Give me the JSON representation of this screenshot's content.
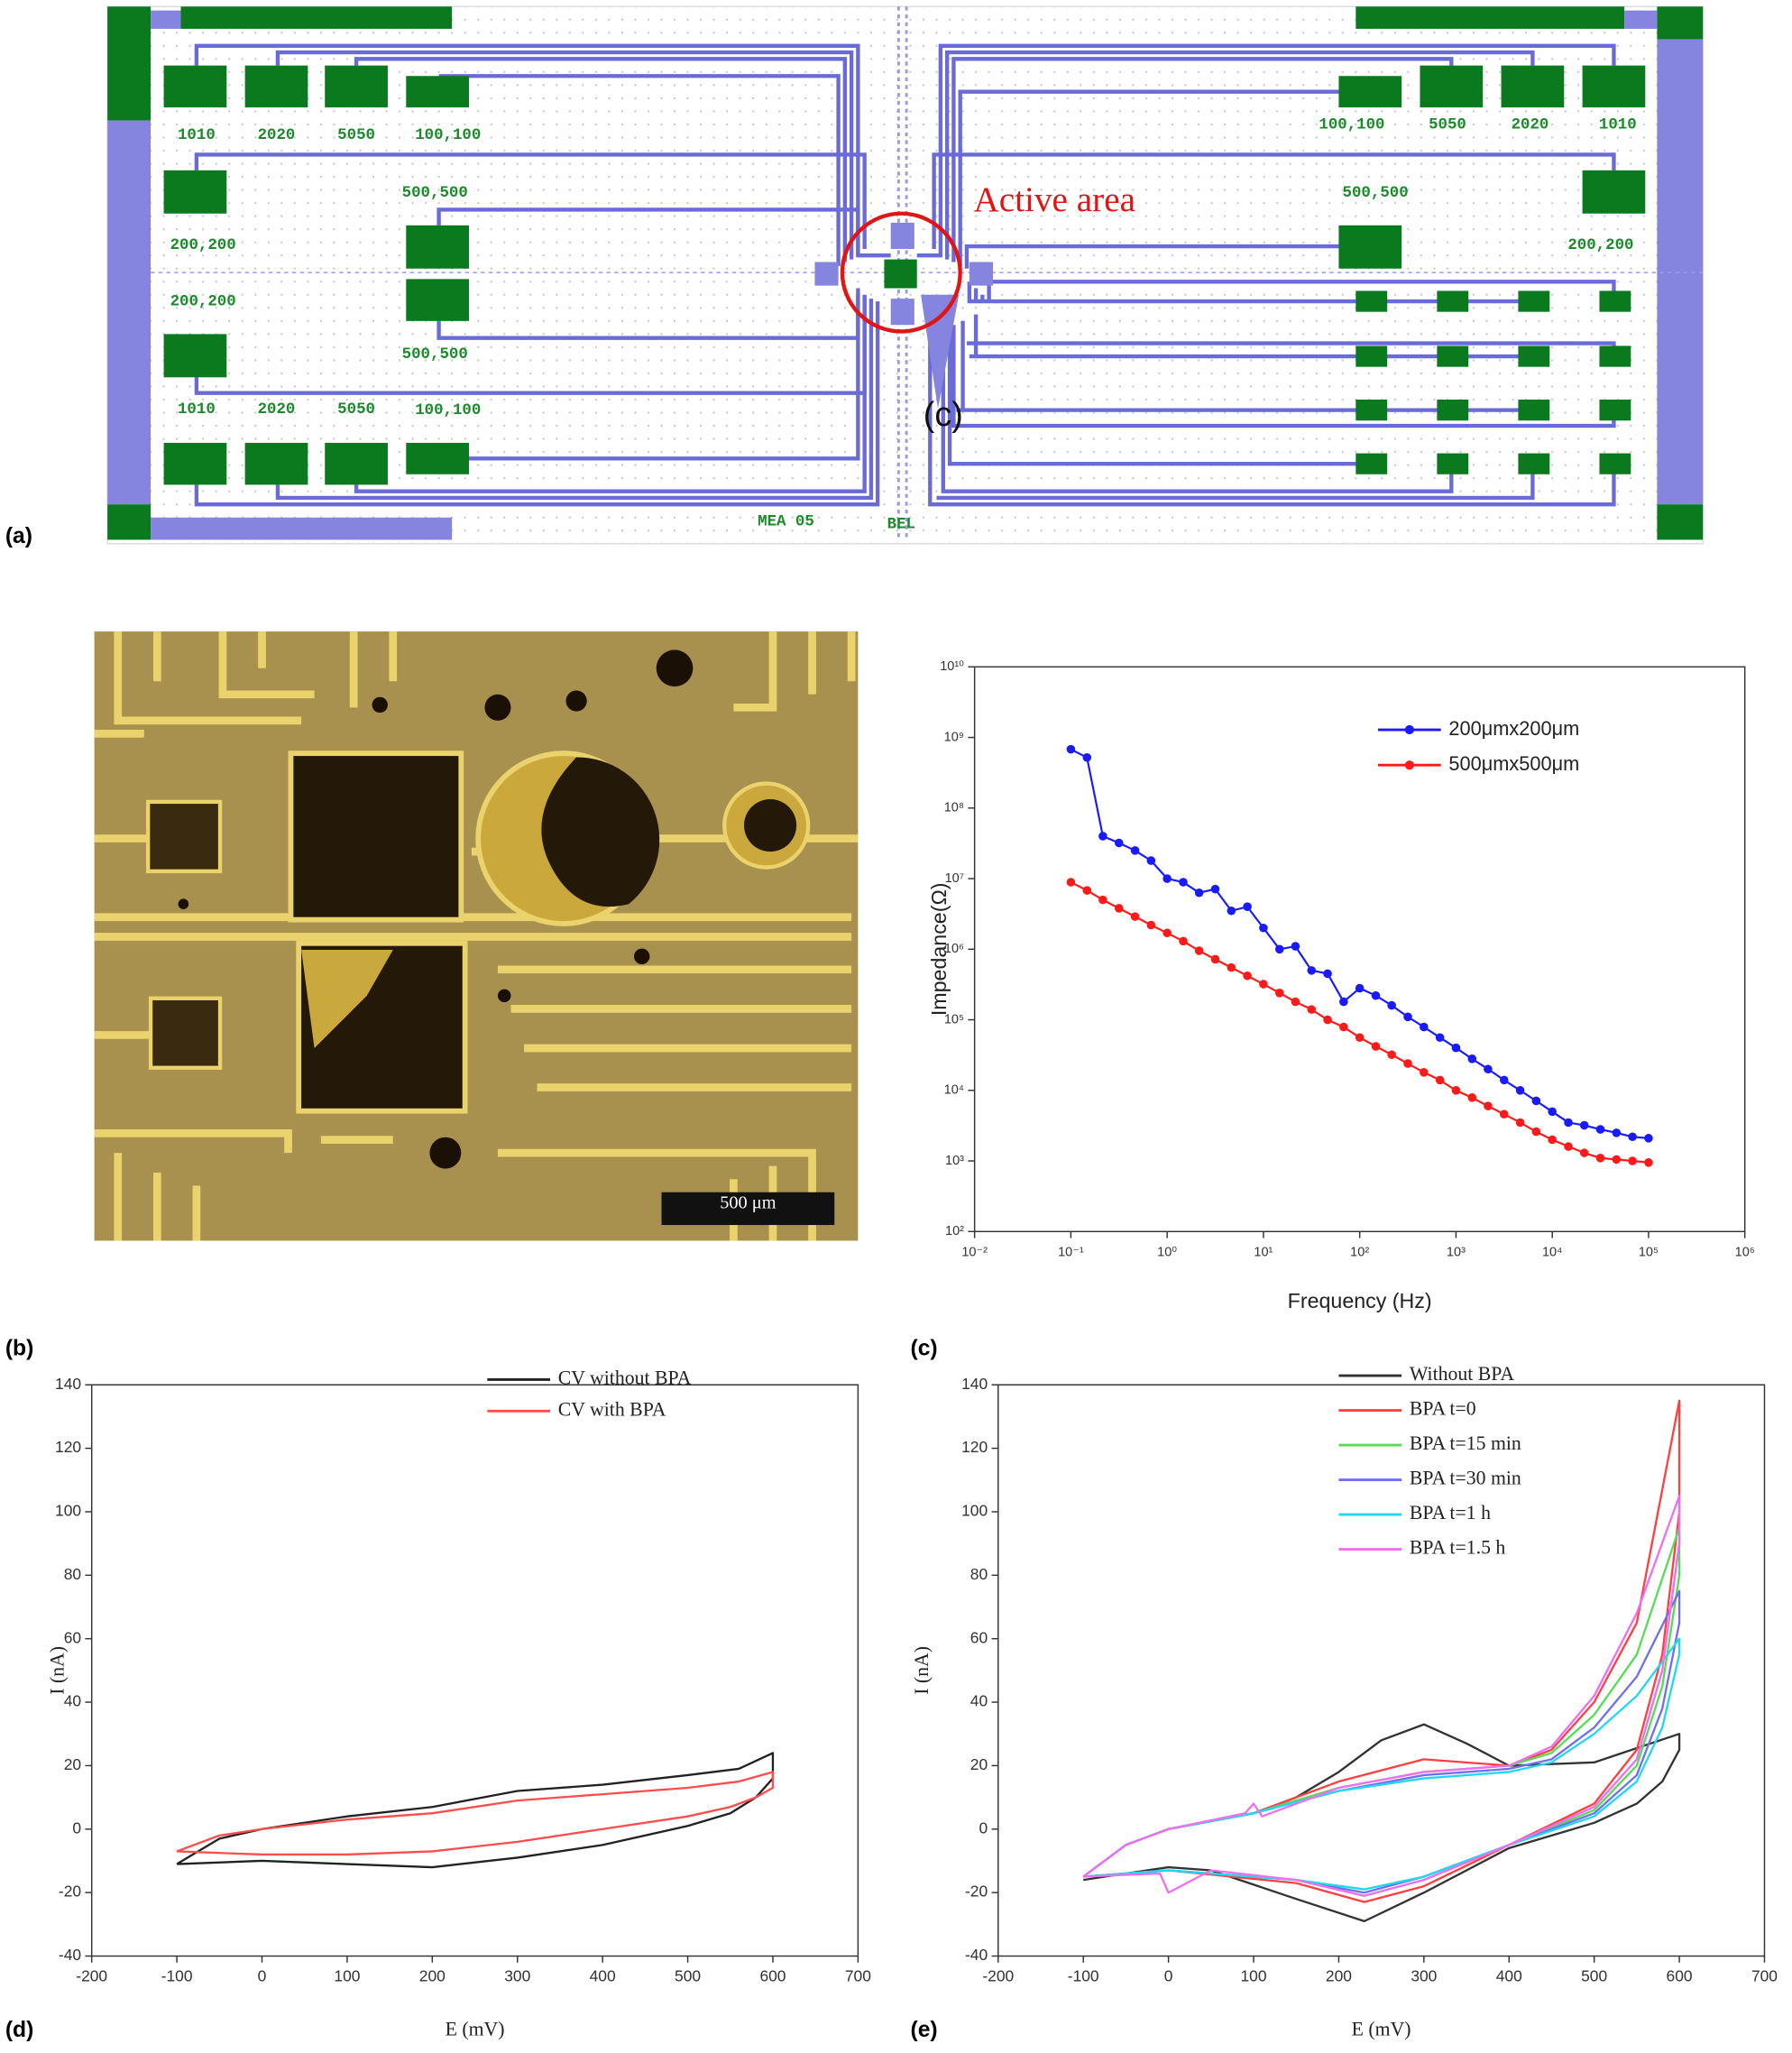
{
  "panel_labels": [
    "(a)",
    "(b)",
    "(c)",
    "(d)",
    "(e)"
  ],
  "layout": {
    "pad_labels": [
      "1010",
      "2020",
      "5050",
      "100,100",
      "500,500",
      "200,200",
      "200,200",
      "500,500",
      "1010",
      "2020",
      "5050",
      "100,100",
      "100,100",
      "5050",
      "2020",
      "1010",
      "500,500",
      "200,200"
    ],
    "active_area": "Active area",
    "inset_label": "(c)",
    "chip_name": "MEA 05",
    "maker": "BEL"
  },
  "micrograph": {
    "scale_bar": "500 μm"
  },
  "chart_data": [
    {
      "type": "line",
      "xscale": "log",
      "yscale": "log",
      "xlabel": "Frequency (Hz)",
      "ylabel": "Impedance(Ω)",
      "legend": "upper right",
      "markers": true,
      "xlim": [
        0.01,
        1000000
      ],
      "ylim": [
        100,
        10000000000
      ],
      "xticks": [
        {
          "value": 0.01,
          "label": "10⁻²"
        },
        {
          "value": 0.1,
          "label": "10⁻¹"
        },
        {
          "value": 1,
          "label": "10⁰"
        },
        {
          "value": 10,
          "label": "10¹"
        },
        {
          "value": 100,
          "label": "10²"
        },
        {
          "value": 1000,
          "label": "10³"
        },
        {
          "value": 10000,
          "label": "10⁴"
        },
        {
          "value": 100000,
          "label": "10⁵"
        },
        {
          "value": 1000000,
          "label": "10⁶"
        }
      ],
      "yticks": [
        {
          "value": 100,
          "label": "10²"
        },
        {
          "value": 1000,
          "label": "10³"
        },
        {
          "value": 10000,
          "label": "10⁴"
        },
        {
          "value": 100000,
          "label": "10⁵"
        },
        {
          "value": 1000000,
          "label": "10⁶"
        },
        {
          "value": 10000000,
          "label": "10⁷"
        },
        {
          "value": 100000000,
          "label": "10⁸"
        },
        {
          "value": 1000000000,
          "label": "10⁹"
        },
        {
          "value": 10000000000,
          "label": "10¹⁰"
        }
      ],
      "x": [
        0.1,
        0.147,
        0.215,
        0.316,
        0.464,
        0.681,
        1,
        1.47,
        2.15,
        3.16,
        4.64,
        6.81,
        10,
        14.7,
        21.5,
        31.6,
        46.4,
        68.1,
        100,
        147,
        215,
        316,
        464,
        681,
        1000,
        1470,
        2150,
        3160,
        4640,
        6810,
        10000,
        14700,
        21500,
        31600,
        46400,
        68100,
        100000
      ],
      "series": [
        {
          "name": "200μmx200μm",
          "color": "#1a1aff",
          "values": [
            680000000.0,
            520000000.0,
            40000000.0,
            32000000.0,
            25000000.0,
            18000000.0,
            10000000.0,
            8900000.0,
            6300000.0,
            7100000.0,
            3500000.0,
            4000000.0,
            2000000.0,
            1000000.0,
            1100000.0,
            500000.0,
            450000.0,
            180000.0,
            280000.0,
            220000.0,
            160000.0,
            110000.0,
            79000.0,
            56000.0,
            40000.0,
            28000.0,
            20000.0,
            14000.0,
            10000.0,
            7100.0,
            5000.0,
            3500.0,
            3200.0,
            2800.0,
            2500.0,
            2200.0,
            2100.0
          ]
        },
        {
          "name": "500μmx500μm",
          "color": "#ff1a1a",
          "values": [
            8900000.0,
            6800000.0,
            5000000.0,
            3800000.0,
            2900000.0,
            2200000.0,
            1700000.0,
            1300000.0,
            950000.0,
            720000.0,
            550000.0,
            420000.0,
            320000.0,
            240000.0,
            180000.0,
            140000.0,
            100000.0,
            79000.0,
            56000.0,
            42000.0,
            32000.0,
            24000.0,
            18000.0,
            14000.0,
            10000.0,
            7900.0,
            6000.0,
            4600.0,
            3500.0,
            2600.0,
            2000.0,
            1600.0,
            1300.0,
            1100.0,
            1050.0,
            1000.0,
            950.0
          ]
        }
      ]
    },
    {
      "type": "line",
      "xlabel": "E (mV)",
      "ylabel": "I (nA)",
      "legend": "upper right",
      "xlim": [
        -200,
        700
      ],
      "ylim": [
        -40,
        140
      ],
      "xticks": [
        -200,
        -100,
        0,
        100,
        200,
        300,
        400,
        500,
        600,
        700
      ],
      "yticks": [
        -40,
        -20,
        0,
        20,
        40,
        60,
        80,
        100,
        120,
        140
      ],
      "series": [
        {
          "name": "CV without BPA",
          "color": "#222222",
          "x": [
            -100,
            -50,
            0,
            100,
            200,
            300,
            400,
            500,
            560,
            600,
            600,
            580,
            550,
            500,
            400,
            300,
            200,
            100,
            0,
            -100
          ],
          "values": [
            -11,
            -3,
            0,
            4,
            7,
            12,
            14,
            17,
            19,
            24,
            16,
            10,
            5,
            1,
            -5,
            -9,
            -12,
            -11,
            -10,
            -11
          ]
        },
        {
          "name": "CV with BPA",
          "color": "#ff4d4d",
          "x": [
            -100,
            -50,
            0,
            100,
            200,
            300,
            400,
            500,
            560,
            600,
            600,
            580,
            550,
            500,
            400,
            300,
            200,
            100,
            0,
            -100
          ],
          "values": [
            -7,
            -2,
            0,
            3,
            5,
            9,
            11,
            13,
            15,
            18,
            13,
            10,
            7,
            4,
            0,
            -4,
            -7,
            -8,
            -8,
            -7
          ]
        }
      ]
    },
    {
      "type": "line",
      "xlabel": "E (mV)",
      "ylabel": "I (nA)",
      "legend": "upper right",
      "xlim": [
        -200,
        700
      ],
      "ylim": [
        -40,
        140
      ],
      "xticks": [
        -200,
        -100,
        0,
        100,
        200,
        300,
        400,
        500,
        600,
        700
      ],
      "yticks": [
        -40,
        -20,
        0,
        20,
        40,
        60,
        80,
        100,
        120,
        140
      ],
      "series": [
        {
          "name": "Without BPA",
          "color": "#333333",
          "x": [
            -100,
            -50,
            0,
            100,
            150,
            200,
            250,
            300,
            350,
            400,
            500,
            600,
            600,
            580,
            550,
            500,
            450,
            400,
            300,
            230,
            150,
            50,
            0,
            -50,
            -100
          ],
          "values": [
            -15,
            -5,
            0,
            5,
            10,
            18,
            28,
            33,
            27,
            20,
            21,
            30,
            25,
            15,
            8,
            2,
            -2,
            -6,
            -20,
            -29,
            -22,
            -13,
            -12,
            -14,
            -16
          ]
        },
        {
          "name": "BPA t=0",
          "color": "#ff4040",
          "x": [
            -100,
            -50,
            0,
            100,
            200,
            300,
            400,
            450,
            500,
            550,
            600,
            600,
            580,
            550,
            500,
            400,
            300,
            230,
            150,
            0,
            -100
          ],
          "values": [
            -15,
            -5,
            0,
            5,
            15,
            22,
            20,
            25,
            40,
            65,
            135,
            100,
            55,
            25,
            8,
            -5,
            -18,
            -23,
            -17,
            -13,
            -15
          ]
        },
        {
          "name": "BPA t=15 min",
          "color": "#55dd55",
          "x": [
            -100,
            -50,
            0,
            100,
            200,
            300,
            400,
            450,
            500,
            550,
            600,
            600,
            580,
            550,
            500,
            400,
            300,
            230,
            150,
            0,
            -100
          ],
          "values": [
            -15,
            -5,
            0,
            5,
            13,
            18,
            20,
            24,
            36,
            55,
            95,
            80,
            45,
            20,
            6,
            -5,
            -16,
            -21,
            -16,
            -13,
            -15
          ]
        },
        {
          "name": "BPA t=30 min",
          "color": "#7070ee",
          "x": [
            -100,
            -50,
            0,
            100,
            200,
            300,
            400,
            450,
            500,
            550,
            600,
            600,
            580,
            550,
            500,
            400,
            300,
            230,
            150,
            0,
            -100
          ],
          "values": [
            -15,
            -5,
            0,
            5,
            12,
            17,
            19,
            22,
            32,
            48,
            75,
            65,
            38,
            17,
            5,
            -5,
            -15,
            -20,
            -16,
            -13,
            -15
          ]
        },
        {
          "name": "BPA t=1 h",
          "color": "#22d8ee",
          "x": [
            -100,
            -50,
            0,
            100,
            200,
            300,
            400,
            450,
            500,
            550,
            600,
            600,
            580,
            550,
            500,
            400,
            300,
            230,
            150,
            0,
            -100
          ],
          "values": [
            -15,
            -5,
            0,
            5,
            12,
            16,
            18,
            21,
            30,
            42,
            60,
            55,
            32,
            15,
            4,
            -5,
            -15,
            -19,
            -16,
            -13,
            -15
          ]
        },
        {
          "name": "BPA t=1.5 h",
          "color": "#ee70ee",
          "x": [
            -100,
            -50,
            0,
            90,
            100,
            110,
            200,
            300,
            400,
            450,
            500,
            550,
            600,
            600,
            580,
            550,
            500,
            400,
            300,
            230,
            150,
            50,
            0,
            -10,
            -100
          ],
          "values": [
            -15,
            -5,
            0,
            5,
            8,
            4,
            13,
            18,
            20,
            26,
            42,
            68,
            105,
            90,
            50,
            22,
            7,
            -5,
            -16,
            -21,
            -16,
            -13,
            -20,
            -14,
            -15
          ]
        }
      ]
    }
  ]
}
